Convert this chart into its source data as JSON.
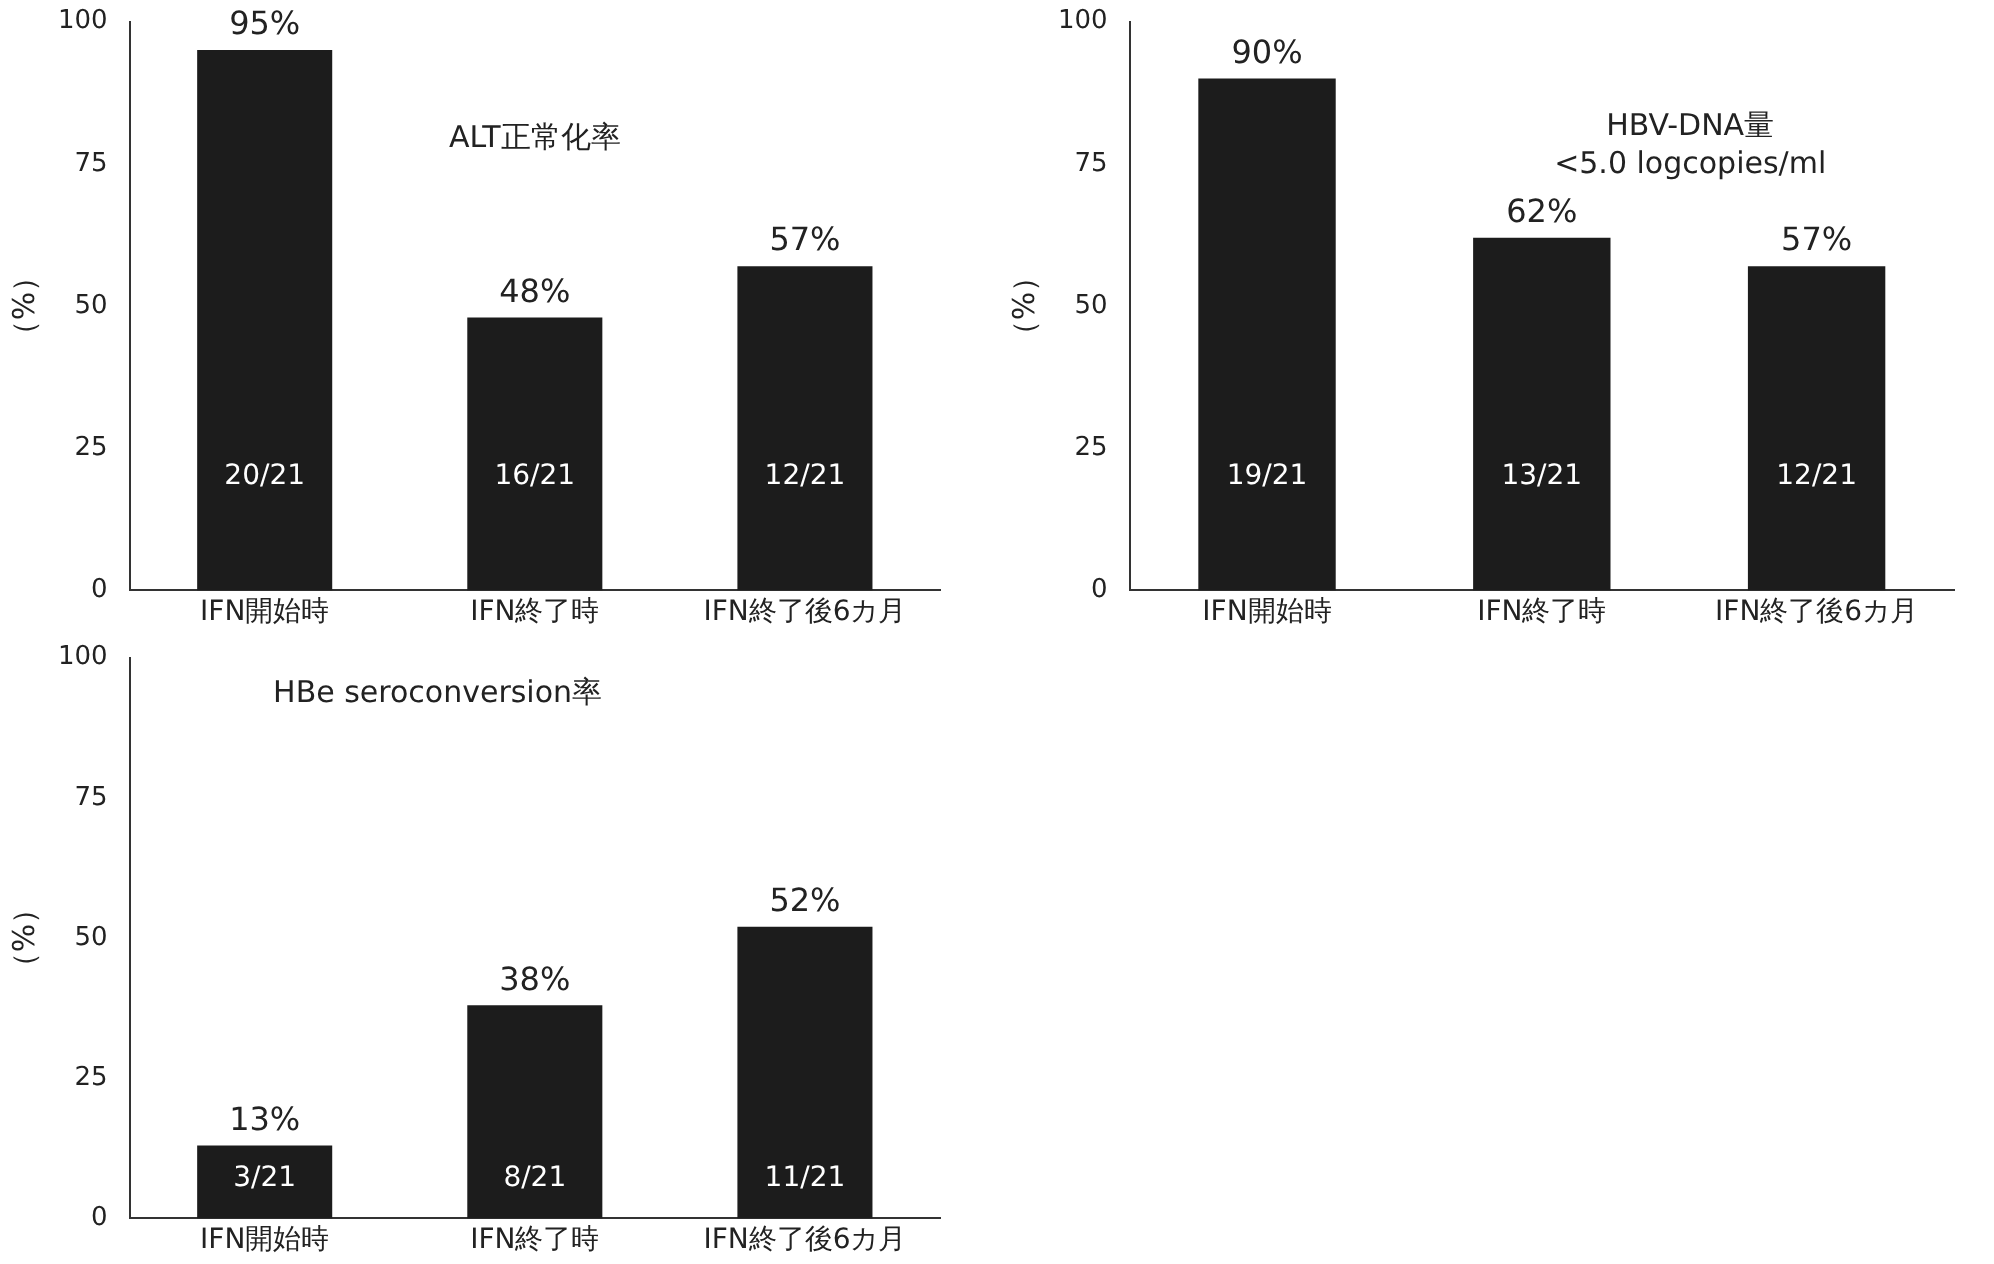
{
  "chart_data": [
    {
      "type": "bar",
      "title": "ALT正常化率",
      "ylabel": "（%）",
      "categories": [
        "IFN開始時",
        "IFN終了時",
        "IFN終了後6カ月"
      ],
      "values": [
        95,
        48,
        57
      ],
      "value_labels": [
        "95%",
        "48%",
        "57%"
      ],
      "color": "#1c1c1c",
      "ylim": [
        0,
        100
      ],
      "yticks": [
        0,
        25,
        50,
        75,
        100
      ],
      "grid": false,
      "legend": false,
      "annotations": [
        "20/21",
        "16/21",
        "12/21"
      ]
    },
    {
      "type": "bar",
      "title": "HBV-DNA量\n<5.0 logcopies/ml",
      "ylabel": "（%）",
      "categories": [
        "IFN開始時",
        "IFN終了時",
        "IFN終了後6カ月"
      ],
      "values": [
        90,
        62,
        57
      ],
      "value_labels": [
        "90%",
        "62%",
        "57%"
      ],
      "color": "#1c1c1c",
      "ylim": [
        0,
        100
      ],
      "yticks": [
        0,
        25,
        50,
        75,
        100
      ],
      "grid": false,
      "legend": false,
      "annotations": [
        "19/21",
        "13/21",
        "12/21"
      ]
    },
    {
      "type": "bar",
      "title": "HBe seroconversion率",
      "ylabel": "（%）",
      "categories": [
        "IFN開始時",
        "IFN終了時",
        "IFN終了後6カ月"
      ],
      "values": [
        13,
        38,
        52
      ],
      "value_labels": [
        "13%",
        "38%",
        "52%"
      ],
      "color": "#1c1c1c",
      "ylim": [
        0,
        100
      ],
      "yticks": [
        0,
        25,
        50,
        75,
        100
      ],
      "grid": false,
      "legend": false,
      "annotations": [
        "3/21",
        "8/21",
        "11/21"
      ]
    }
  ]
}
